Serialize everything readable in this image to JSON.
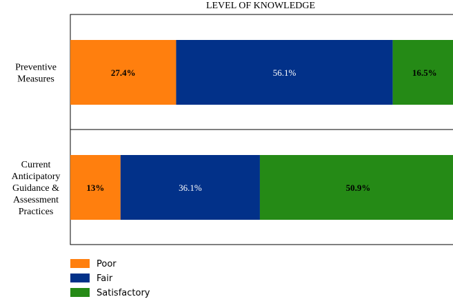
{
  "chart_data": {
    "type": "bar",
    "orientation": "horizontal",
    "stacked": true,
    "title": "LEVEL OF KNOWLEDGE",
    "categories": [
      [
        "Preventive",
        "Measures"
      ],
      [
        "Current",
        "Anticipatory",
        "Guidance &",
        "Assessment",
        "Practices"
      ]
    ],
    "series": [
      {
        "name": "Poor",
        "color": "#FF7F0E",
        "values": [
          27.4,
          13
        ],
        "labels": [
          "27.4%",
          "13%"
        ],
        "label_color": "#000000"
      },
      {
        "name": "Fair",
        "color": "#023189",
        "values": [
          56.1,
          36.1
        ],
        "labels": [
          "56.1%",
          "36.1%"
        ],
        "label_color": "#ffffff"
      },
      {
        "name": "Satisfactory",
        "color": "#258A16",
        "values": [
          16.5,
          50.9
        ],
        "labels": [
          "16.5%",
          "50.9%"
        ],
        "label_color": "#000000"
      }
    ],
    "xlim": [
      0,
      100
    ],
    "grid": false,
    "legend_position": "bottom-left"
  }
}
